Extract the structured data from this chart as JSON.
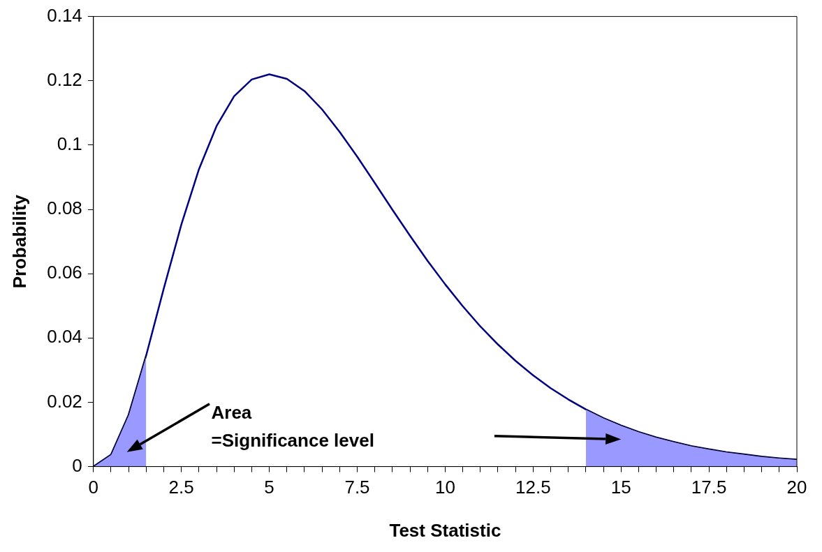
{
  "chart_data": {
    "type": "line",
    "xlabel": "Test Statistic",
    "ylabel": "Probability",
    "xlim": [
      0,
      20
    ],
    "ylim": [
      0,
      0.14
    ],
    "xticks": [
      0,
      {
        "value": 0.5,
        "label": null
      },
      {
        "value": 1,
        "label": null
      },
      {
        "value": 1.5,
        "label": null
      },
      {
        "value": 2,
        "label": null
      },
      2.5,
      {
        "value": 3,
        "label": null
      },
      {
        "value": 3.5,
        "label": null
      },
      {
        "value": 4,
        "label": null
      },
      {
        "value": 4.5,
        "label": null
      },
      5,
      {
        "value": 5.5,
        "label": null
      },
      {
        "value": 6,
        "label": null
      },
      {
        "value": 6.5,
        "label": null
      },
      {
        "value": 7,
        "label": null
      },
      7.5,
      {
        "value": 8,
        "label": null
      },
      {
        "value": 8.5,
        "label": null
      },
      {
        "value": 9,
        "label": null
      },
      {
        "value": 9.5,
        "label": null
      },
      10,
      {
        "value": 10.5,
        "label": null
      },
      {
        "value": 11,
        "label": null
      },
      {
        "value": 11.5,
        "label": null
      },
      {
        "value": 12,
        "label": null
      },
      12.5,
      {
        "value": 13,
        "label": null
      },
      {
        "value": 13.5,
        "label": null
      },
      {
        "value": 14,
        "label": null
      },
      {
        "value": 14.5,
        "label": null
      },
      15,
      {
        "value": 15.5,
        "label": null
      },
      {
        "value": 16,
        "label": null
      },
      {
        "value": 16.5,
        "label": null
      },
      {
        "value": 17,
        "label": null
      },
      17.5,
      {
        "value": 18,
        "label": null
      },
      {
        "value": 18.5,
        "label": null
      },
      {
        "value": 19,
        "label": null
      },
      {
        "value": 19.5,
        "label": null
      },
      20
    ],
    "yticks": [
      0,
      0.02,
      0.04,
      0.06,
      0.08,
      0.1,
      0.12,
      0.14
    ],
    "grid": false,
    "legend": false,
    "marker": "none",
    "line_style": "solid",
    "annotations": [
      "Area\n=Significance level"
    ],
    "series": [
      {
        "type": "area",
        "color": "#9999ff",
        "x": [
          0,
          0.5,
          1,
          1.5
        ],
        "values": [
          0,
          0.0037,
          0.0161,
          0.0346
        ]
      },
      {
        "type": "area",
        "color": "#9999ff",
        "x": [
          14,
          14.5,
          15,
          15.5,
          16,
          16.5,
          17,
          17.5,
          18,
          18.5,
          19,
          19.5,
          20
        ],
        "values": [
          0.0178,
          0.0151,
          0.0128,
          0.0108,
          0.0091,
          0.0077,
          0.0064,
          0.0054,
          0.0045,
          0.0038,
          0.0031,
          0.0026,
          0.0022
        ]
      },
      {
        "color": "#000080",
        "x": [
          0,
          0.5,
          1,
          1.5,
          2,
          2.5,
          3,
          3.5,
          4,
          4.5,
          5,
          5.5,
          6,
          6.5,
          7,
          7.5,
          8,
          8.5,
          9,
          9.5,
          10,
          10.5,
          11,
          11.5,
          12,
          12.5,
          13,
          13.5,
          14,
          14.5,
          15,
          15.5,
          16,
          16.5,
          17,
          17.5,
          18,
          18.5,
          19,
          19.5,
          20
        ],
        "values": [
          0,
          0.0037,
          0.0161,
          0.0346,
          0.0554,
          0.0753,
          0.0925,
          0.1059,
          0.1152,
          0.1204,
          0.122,
          0.1206,
          0.1168,
          0.1111,
          0.1041,
          0.0964,
          0.0882,
          0.0799,
          0.0718,
          0.064,
          0.0567,
          0.0499,
          0.0436,
          0.038,
          0.0329,
          0.0284,
          0.0244,
          0.0209,
          0.0178,
          0.0151,
          0.0128,
          0.0108,
          0.0091,
          0.0077,
          0.0064,
          0.0054,
          0.0045,
          0.0038,
          0.0031,
          0.0026,
          0.0022
        ]
      }
    ]
  }
}
